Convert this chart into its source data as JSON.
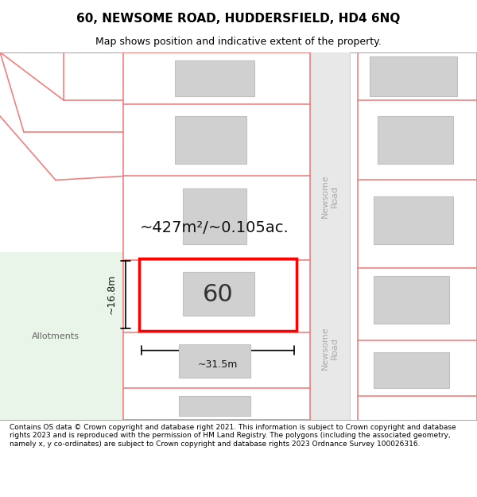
{
  "title_line1": "60, NEWSOME ROAD, HUDDERSFIELD, HD4 6NQ",
  "title_line2": "Map shows position and indicative extent of the property.",
  "footer_text": "Contains OS data © Crown copyright and database right 2021. This information is subject to Crown copyright and database rights 2023 and is reproduced with the permission of HM Land Registry. The polygons (including the associated geometry, namely x, y co-ordinates) are subject to Crown copyright and database rights 2023 Ordnance Survey 100026316.",
  "bg_map_color": "#ffffff",
  "road_strip_color": "#e8e8e8",
  "road_line_color": "#cccccc",
  "plot_outline_color": "#ff0000",
  "building_fill_color": "#d0d0d0",
  "building_outline_color": "#c0c0c0",
  "allotments_fill": "#e8f5e8",
  "allotments_text": "Allotments",
  "pink_line_color": "#f08080",
  "dim_line_color": "#000000",
  "area_text": "~427m²/~0.105ac.",
  "width_label": "~31.5m",
  "height_label": "~16.8m",
  "number_label": "60",
  "road_label": "Newsome Road",
  "footer_bg": "#ffffff",
  "map_bg": "#f8f8f8"
}
